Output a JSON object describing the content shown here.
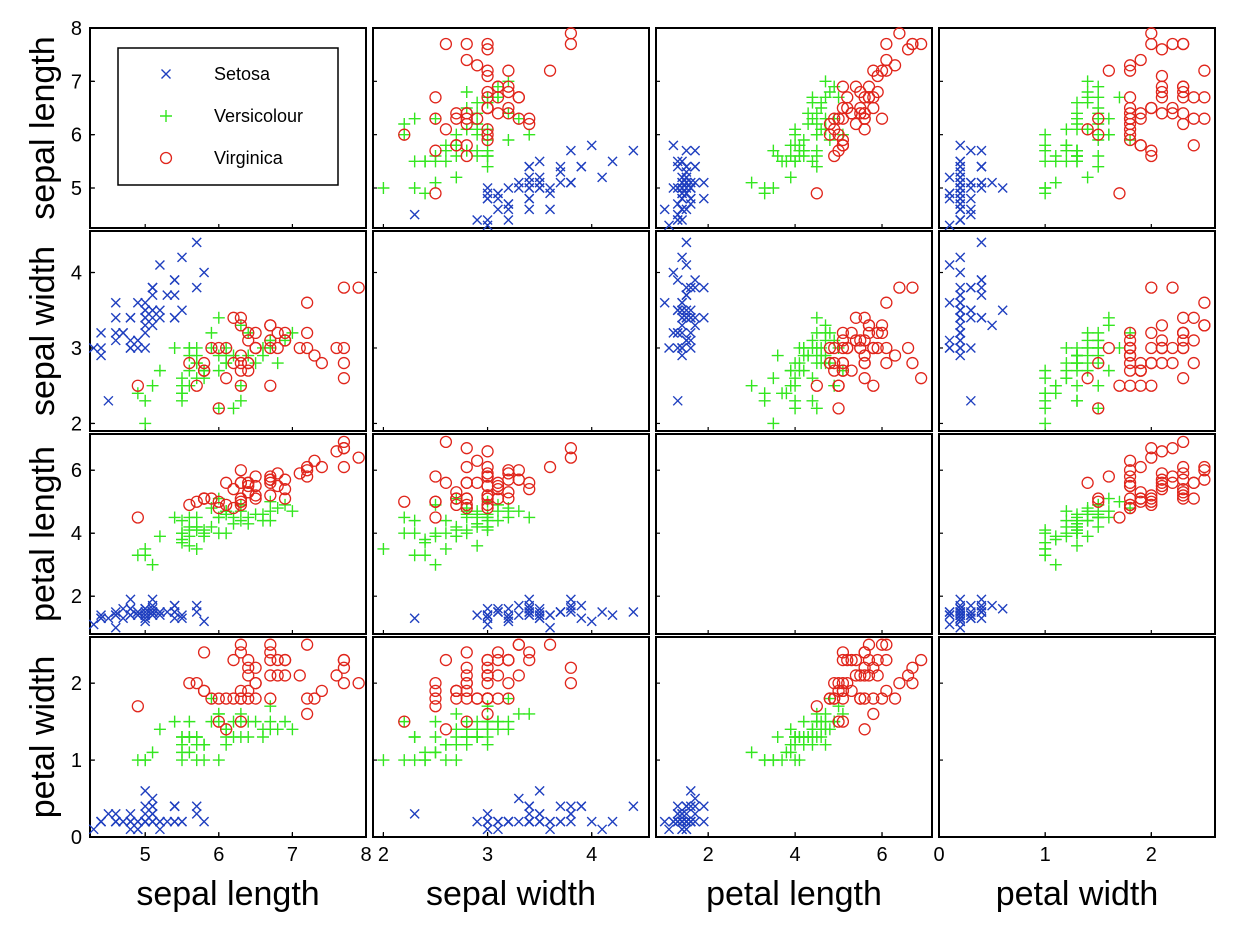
{
  "chart_data": {
    "type": "scatter",
    "title": "",
    "variables": [
      "sepal length",
      "sepal width",
      "petal length",
      "petal width"
    ],
    "ranges": {
      "sepal length": [
        4.25,
        8.0
      ],
      "sepal width": [
        1.9,
        4.55
      ],
      "petal length": [
        0.8,
        7.15
      ],
      "petal width": [
        0.0,
        2.6
      ]
    },
    "ticks": {
      "sepal length": {
        "x": [
          "5",
          "6",
          "7",
          "8"
        ],
        "y": [
          "5",
          "6",
          "7",
          "8"
        ]
      },
      "sepal width": {
        "x": [
          "2",
          "3",
          "4"
        ],
        "y": [
          "2",
          "3",
          "4"
        ]
      },
      "petal length": {
        "x": [
          "2",
          "4",
          "6"
        ],
        "y": [
          "2",
          "4",
          "6"
        ]
      },
      "petal width": {
        "x": [
          "0",
          "1",
          "2"
        ],
        "y": [
          "0",
          "1",
          "2"
        ]
      }
    },
    "diagonal": "empty (legend in first panel)",
    "legend_placement": "top-left panel",
    "grid": false,
    "series": [
      {
        "name": "Setosa",
        "marker": "x",
        "color": "#1f3fbf",
        "points": [
          [
            5.1,
            3.5,
            1.4,
            0.2
          ],
          [
            4.9,
            3.0,
            1.4,
            0.2
          ],
          [
            4.7,
            3.2,
            1.3,
            0.2
          ],
          [
            4.6,
            3.1,
            1.5,
            0.2
          ],
          [
            5.0,
            3.6,
            1.4,
            0.2
          ],
          [
            5.4,
            3.9,
            1.7,
            0.4
          ],
          [
            4.6,
            3.4,
            1.4,
            0.3
          ],
          [
            5.0,
            3.4,
            1.5,
            0.2
          ],
          [
            4.4,
            2.9,
            1.4,
            0.2
          ],
          [
            4.9,
            3.1,
            1.5,
            0.1
          ],
          [
            5.4,
            3.7,
            1.5,
            0.2
          ],
          [
            4.8,
            3.4,
            1.6,
            0.2
          ],
          [
            4.8,
            3.0,
            1.4,
            0.1
          ],
          [
            4.3,
            3.0,
            1.1,
            0.1
          ],
          [
            5.8,
            4.0,
            1.2,
            0.2
          ],
          [
            5.7,
            4.4,
            1.5,
            0.4
          ],
          [
            5.4,
            3.9,
            1.3,
            0.4
          ],
          [
            5.1,
            3.5,
            1.4,
            0.3
          ],
          [
            5.7,
            3.8,
            1.7,
            0.3
          ],
          [
            5.1,
            3.8,
            1.5,
            0.3
          ],
          [
            5.4,
            3.4,
            1.7,
            0.2
          ],
          [
            5.1,
            3.7,
            1.5,
            0.4
          ],
          [
            4.6,
            3.6,
            1.0,
            0.2
          ],
          [
            5.1,
            3.3,
            1.7,
            0.5
          ],
          [
            4.8,
            3.4,
            1.9,
            0.2
          ],
          [
            5.0,
            3.0,
            1.6,
            0.2
          ],
          [
            5.0,
            3.4,
            1.6,
            0.4
          ],
          [
            5.2,
            3.5,
            1.5,
            0.2
          ],
          [
            5.2,
            3.4,
            1.4,
            0.2
          ],
          [
            4.7,
            3.2,
            1.6,
            0.2
          ],
          [
            4.8,
            3.1,
            1.6,
            0.2
          ],
          [
            5.4,
            3.4,
            1.5,
            0.4
          ],
          [
            5.2,
            4.1,
            1.5,
            0.1
          ],
          [
            5.5,
            4.2,
            1.4,
            0.2
          ],
          [
            4.9,
            3.1,
            1.5,
            0.2
          ],
          [
            5.0,
            3.2,
            1.2,
            0.2
          ],
          [
            5.5,
            3.5,
            1.3,
            0.2
          ],
          [
            4.9,
            3.6,
            1.4,
            0.1
          ],
          [
            4.4,
            3.0,
            1.3,
            0.2
          ],
          [
            5.1,
            3.4,
            1.5,
            0.2
          ],
          [
            5.0,
            3.5,
            1.3,
            0.3
          ],
          [
            4.5,
            2.3,
            1.3,
            0.3
          ],
          [
            4.4,
            3.2,
            1.3,
            0.2
          ],
          [
            5.0,
            3.5,
            1.6,
            0.6
          ],
          [
            5.1,
            3.8,
            1.9,
            0.4
          ],
          [
            4.8,
            3.0,
            1.4,
            0.3
          ],
          [
            5.1,
            3.8,
            1.6,
            0.2
          ],
          [
            4.6,
            3.2,
            1.4,
            0.2
          ],
          [
            5.3,
            3.7,
            1.5,
            0.2
          ],
          [
            5.0,
            3.3,
            1.4,
            0.2
          ]
        ]
      },
      {
        "name": "Versicolour",
        "marker": "+",
        "color": "#33e61f",
        "points": [
          [
            7.0,
            3.2,
            4.7,
            1.4
          ],
          [
            6.4,
            3.2,
            4.5,
            1.5
          ],
          [
            6.9,
            3.1,
            4.9,
            1.5
          ],
          [
            5.5,
            2.3,
            4.0,
            1.3
          ],
          [
            6.5,
            2.8,
            4.6,
            1.5
          ],
          [
            5.7,
            2.8,
            4.5,
            1.3
          ],
          [
            6.3,
            3.3,
            4.7,
            1.6
          ],
          [
            4.9,
            2.4,
            3.3,
            1.0
          ],
          [
            6.6,
            2.9,
            4.6,
            1.3
          ],
          [
            5.2,
            2.7,
            3.9,
            1.4
          ],
          [
            5.0,
            2.0,
            3.5,
            1.0
          ],
          [
            5.9,
            3.0,
            4.2,
            1.5
          ],
          [
            6.0,
            2.2,
            4.0,
            1.0
          ],
          [
            6.1,
            2.9,
            4.7,
            1.4
          ],
          [
            5.6,
            2.9,
            3.6,
            1.3
          ],
          [
            6.7,
            3.1,
            4.4,
            1.4
          ],
          [
            5.6,
            3.0,
            4.5,
            1.5
          ],
          [
            5.8,
            2.7,
            4.1,
            1.0
          ],
          [
            6.2,
            2.2,
            4.5,
            1.5
          ],
          [
            5.6,
            2.5,
            3.9,
            1.1
          ],
          [
            5.9,
            3.2,
            4.8,
            1.8
          ],
          [
            6.1,
            2.8,
            4.0,
            1.3
          ],
          [
            6.3,
            2.5,
            4.9,
            1.5
          ],
          [
            6.1,
            2.8,
            4.7,
            1.2
          ],
          [
            6.4,
            2.9,
            4.3,
            1.3
          ],
          [
            6.6,
            3.0,
            4.4,
            1.4
          ],
          [
            6.8,
            2.8,
            4.8,
            1.4
          ],
          [
            6.7,
            3.0,
            5.0,
            1.7
          ],
          [
            6.0,
            2.9,
            4.5,
            1.5
          ],
          [
            5.7,
            2.6,
            3.5,
            1.0
          ],
          [
            5.5,
            2.4,
            3.8,
            1.1
          ],
          [
            5.5,
            2.4,
            3.7,
            1.0
          ],
          [
            5.8,
            2.7,
            3.9,
            1.2
          ],
          [
            6.0,
            2.7,
            5.1,
            1.6
          ],
          [
            5.4,
            3.0,
            4.5,
            1.5
          ],
          [
            6.0,
            3.4,
            4.5,
            1.6
          ],
          [
            6.7,
            3.1,
            4.7,
            1.5
          ],
          [
            6.3,
            2.3,
            4.4,
            1.3
          ],
          [
            5.6,
            3.0,
            4.1,
            1.3
          ],
          [
            5.5,
            2.5,
            4.0,
            1.3
          ],
          [
            5.5,
            2.6,
            4.4,
            1.2
          ],
          [
            6.1,
            3.0,
            4.6,
            1.4
          ],
          [
            5.8,
            2.6,
            4.0,
            1.2
          ],
          [
            5.0,
            2.3,
            3.3,
            1.0
          ],
          [
            5.6,
            2.7,
            4.2,
            1.3
          ],
          [
            5.7,
            3.0,
            4.2,
            1.2
          ],
          [
            5.7,
            2.9,
            4.2,
            1.3
          ],
          [
            6.2,
            2.9,
            4.3,
            1.3
          ],
          [
            5.1,
            2.5,
            3.0,
            1.1
          ],
          [
            5.7,
            2.8,
            4.1,
            1.3
          ]
        ]
      },
      {
        "name": "Virginica",
        "marker": "o",
        "color": "#e0251b",
        "points": [
          [
            6.3,
            3.3,
            6.0,
            2.5
          ],
          [
            5.8,
            2.7,
            5.1,
            1.9
          ],
          [
            7.1,
            3.0,
            5.9,
            2.1
          ],
          [
            6.3,
            2.9,
            5.6,
            1.8
          ],
          [
            6.5,
            3.0,
            5.8,
            2.2
          ],
          [
            7.6,
            3.0,
            6.6,
            2.1
          ],
          [
            4.9,
            2.5,
            4.5,
            1.7
          ],
          [
            7.3,
            2.9,
            6.3,
            1.8
          ],
          [
            6.7,
            2.5,
            5.8,
            1.8
          ],
          [
            7.2,
            3.6,
            6.1,
            2.5
          ],
          [
            6.5,
            3.2,
            5.1,
            2.0
          ],
          [
            6.4,
            2.7,
            5.3,
            1.9
          ],
          [
            6.8,
            3.0,
            5.5,
            2.1
          ],
          [
            5.7,
            2.5,
            5.0,
            2.0
          ],
          [
            5.8,
            2.8,
            5.1,
            2.4
          ],
          [
            6.4,
            3.2,
            5.3,
            2.3
          ],
          [
            6.5,
            3.0,
            5.5,
            1.8
          ],
          [
            7.7,
            3.8,
            6.7,
            2.2
          ],
          [
            7.7,
            2.6,
            6.9,
            2.3
          ],
          [
            6.0,
            2.2,
            5.0,
            1.5
          ],
          [
            6.9,
            3.2,
            5.7,
            2.3
          ],
          [
            5.6,
            2.8,
            4.9,
            2.0
          ],
          [
            7.7,
            2.8,
            6.7,
            2.0
          ],
          [
            6.3,
            2.7,
            4.9,
            1.8
          ],
          [
            6.7,
            3.3,
            5.7,
            2.1
          ],
          [
            7.2,
            3.2,
            6.0,
            1.8
          ],
          [
            6.2,
            2.8,
            4.8,
            1.8
          ],
          [
            6.1,
            3.0,
            4.9,
            1.8
          ],
          [
            6.4,
            2.8,
            5.6,
            2.1
          ],
          [
            7.2,
            3.0,
            5.8,
            1.6
          ],
          [
            7.4,
            2.8,
            6.1,
            1.9
          ],
          [
            7.9,
            3.8,
            6.4,
            2.0
          ],
          [
            6.4,
            2.8,
            5.6,
            2.2
          ],
          [
            6.3,
            2.8,
            5.1,
            1.5
          ],
          [
            6.1,
            2.6,
            5.6,
            1.4
          ],
          [
            7.7,
            3.0,
            6.1,
            2.3
          ],
          [
            6.3,
            3.4,
            5.6,
            2.4
          ],
          [
            6.4,
            3.1,
            5.5,
            1.8
          ],
          [
            6.0,
            3.0,
            4.8,
            1.8
          ],
          [
            6.9,
            3.1,
            5.4,
            2.1
          ],
          [
            6.7,
            3.1,
            5.6,
            2.4
          ],
          [
            6.9,
            3.1,
            5.1,
            2.3
          ],
          [
            5.8,
            2.7,
            5.1,
            1.9
          ],
          [
            6.8,
            3.2,
            5.9,
            2.3
          ],
          [
            6.7,
            3.3,
            5.7,
            2.5
          ],
          [
            6.7,
            3.0,
            5.2,
            2.3
          ],
          [
            6.3,
            2.5,
            5.0,
            1.9
          ],
          [
            6.5,
            3.0,
            5.2,
            2.0
          ],
          [
            6.2,
            3.4,
            5.4,
            2.3
          ],
          [
            5.9,
            3.0,
            5.1,
            1.8
          ]
        ]
      }
    ]
  }
}
